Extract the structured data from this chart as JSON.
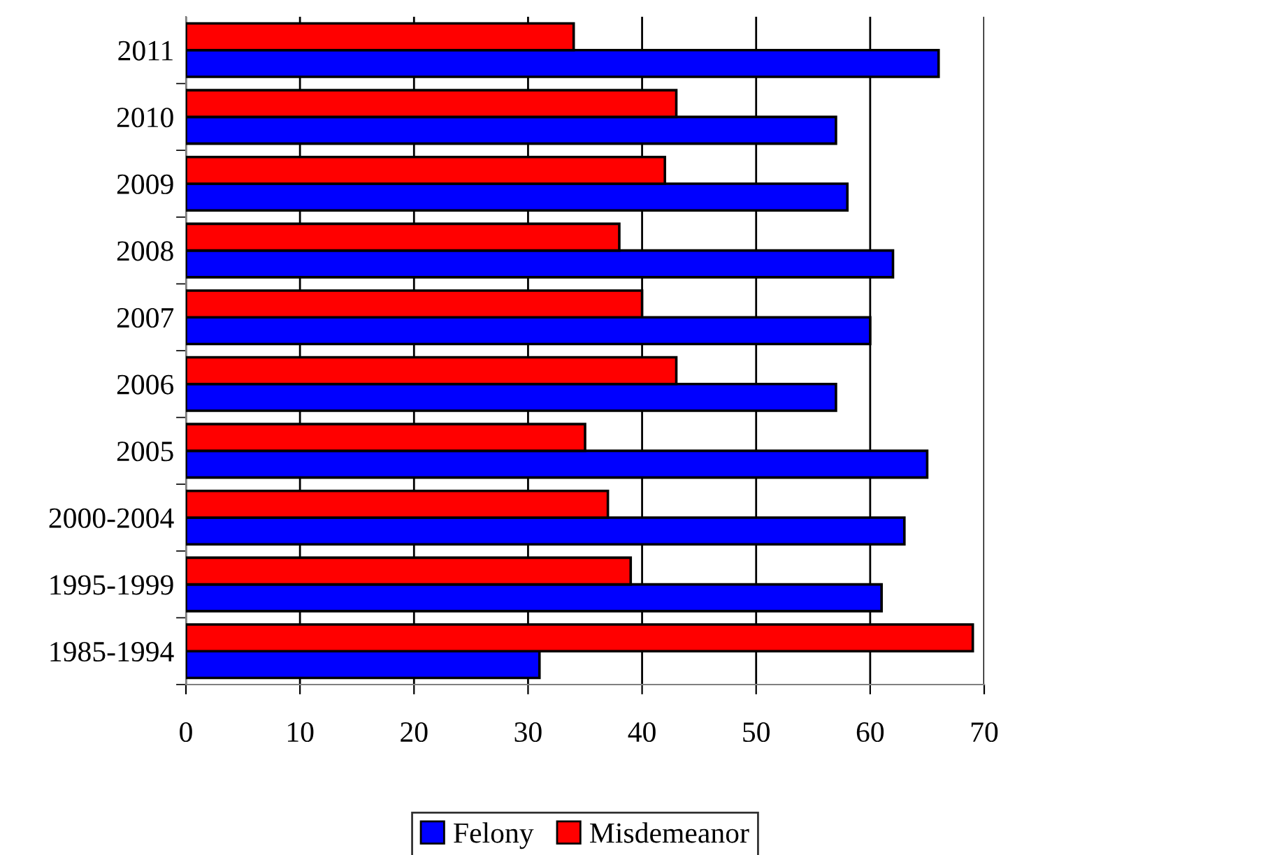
{
  "chart_data": {
    "type": "bar",
    "orientation": "horizontal",
    "categories": [
      "2011",
      "2010",
      "2009",
      "2008",
      "2007",
      "2006",
      "2005",
      "2000-2004",
      "1995-1999",
      "1985-1994"
    ],
    "series": [
      {
        "name": "Felony",
        "color": "#0000ff",
        "values": [
          66,
          57,
          58,
          62,
          60,
          57,
          65,
          63,
          61,
          31
        ]
      },
      {
        "name": "Misdemeanor",
        "color": "#ff0000",
        "values": [
          34,
          43,
          42,
          38,
          40,
          43,
          35,
          37,
          39,
          69
        ]
      }
    ],
    "xlim": [
      0,
      70
    ],
    "xticks": [
      0,
      10,
      20,
      30,
      40,
      50,
      60,
      70
    ],
    "grid": "x",
    "legend": "bottom"
  }
}
